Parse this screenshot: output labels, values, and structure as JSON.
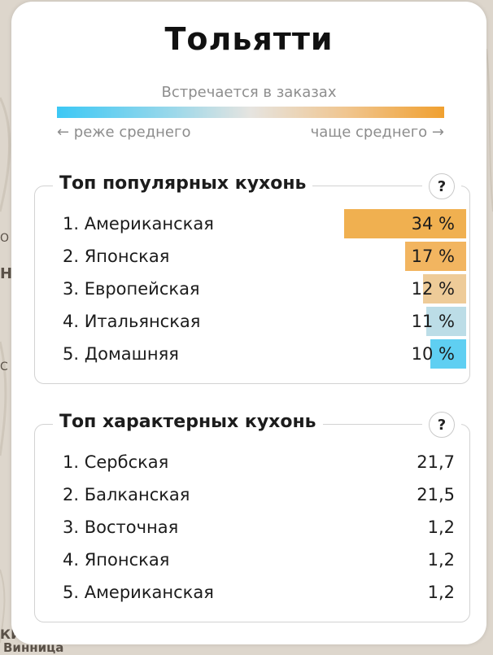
{
  "city": "Тольятти",
  "legend": {
    "title": "Встречается в заказах",
    "left": "← реже среднего",
    "right": "чаще среднего →",
    "gradient_colors": [
      "#3cc8f5",
      "#e6e4e0",
      "#f0a030"
    ]
  },
  "popular": {
    "title": "Топ популярных кухонь",
    "help": "?",
    "items": [
      {
        "label": "1. Американская",
        "value": "34 %",
        "share": 0.34,
        "color": "#f0b050"
      },
      {
        "label": "2. Японская",
        "value": "17 %",
        "share": 0.17,
        "color": "#f2b560"
      },
      {
        "label": "3. Европейская",
        "value": "12 %",
        "share": 0.12,
        "color": "#eecb98"
      },
      {
        "label": "4. Итальянская",
        "value": "11 %",
        "share": 0.11,
        "color": "#bcdde7"
      },
      {
        "label": "5. Домашняя",
        "value": "10 %",
        "share": 0.1,
        "color": "#5fcff2"
      }
    ]
  },
  "characteristic": {
    "title": "Топ характерных кухонь",
    "help": "?",
    "items": [
      {
        "label": "1. Сербская",
        "value": "21,7"
      },
      {
        "label": "2. Балканская",
        "value": "21,5"
      },
      {
        "label": "3. Восточная",
        "value": "1,2"
      },
      {
        "label": "4. Японская",
        "value": "1,2"
      },
      {
        "label": "5. Американская",
        "value": "1,2"
      }
    ]
  },
  "map_labels": {
    "bottom_left_1": "КИ",
    "bottom_left_2": "Винница",
    "side_left_1": "Н",
    "side_left_2": "О",
    "side_left_3": "С"
  }
}
